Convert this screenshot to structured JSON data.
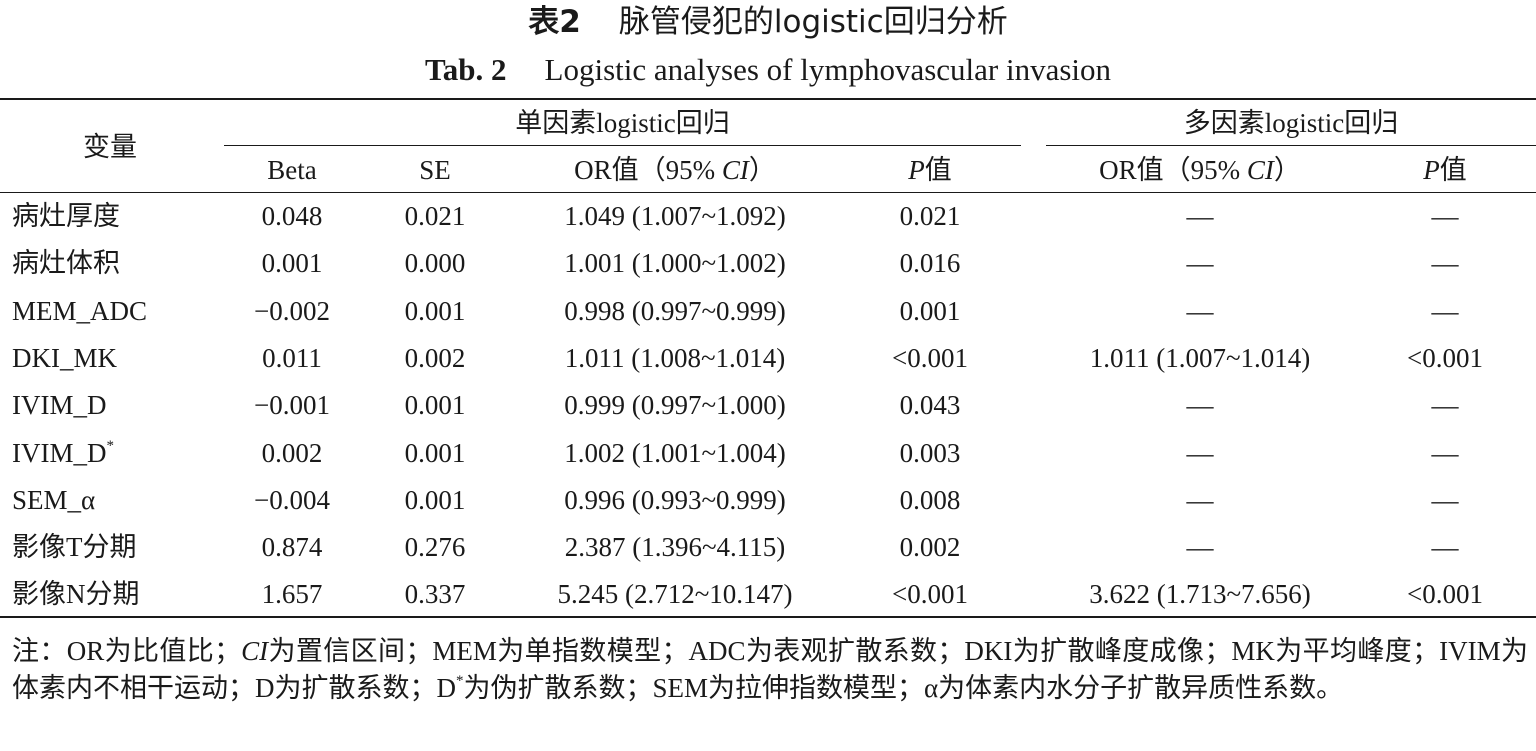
{
  "title": {
    "cn_label": "表2",
    "cn_text": "脉管侵犯的logistic回归分析",
    "en_label": "Tab. 2",
    "en_text": "Logistic analyses of lymphovascular invasion"
  },
  "header": {
    "variable": "变量",
    "uni_group": "单因素logistic回归",
    "multi_group": "多因素logistic回归",
    "beta": "Beta",
    "se": "SE",
    "or_prefix": "OR值（95% ",
    "ci": "CI",
    "or_suffix": "）",
    "p": "P",
    "p_suffix": "值"
  },
  "rows": [
    {
      "var": "病灶厚度",
      "sup": "",
      "beta": "0.048",
      "se": "0.021",
      "or": "1.049 (1.007~1.092)",
      "p": "0.021",
      "mor": "—",
      "mp": "—"
    },
    {
      "var": "病灶体积",
      "sup": "",
      "beta": "0.001",
      "se": "0.000",
      "or": "1.001 (1.000~1.002)",
      "p": "0.016",
      "mor": "—",
      "mp": "—"
    },
    {
      "var": "MEM_ADC",
      "sup": "",
      "beta": "−0.002",
      "se": "0.001",
      "or": "0.998 (0.997~0.999)",
      "p": "0.001",
      "mor": "—",
      "mp": "—"
    },
    {
      "var": "DKI_MK",
      "sup": "",
      "beta": "0.011",
      "se": "0.002",
      "or": "1.011 (1.008~1.014)",
      "p": "<0.001",
      "mor": "1.011 (1.007~1.014)",
      "mp": "<0.001"
    },
    {
      "var": "IVIM_D",
      "sup": "",
      "beta": "−0.001",
      "se": "0.001",
      "or": "0.999 (0.997~1.000)",
      "p": "0.043",
      "mor": "—",
      "mp": "—"
    },
    {
      "var": "IVIM_D",
      "sup": "*",
      "beta": "0.002",
      "se": "0.001",
      "or": "1.002 (1.001~1.004)",
      "p": "0.003",
      "mor": "—",
      "mp": "—"
    },
    {
      "var": "SEM_α",
      "sup": "",
      "beta": "−0.004",
      "se": "0.001",
      "or": "0.996 (0.993~0.999)",
      "p": "0.008",
      "mor": "—",
      "mp": "—"
    },
    {
      "var": "影像T分期",
      "sup": "",
      "beta": "0.874",
      "se": "0.276",
      "or": "2.387 (1.396~4.115)",
      "p": "0.002",
      "mor": "—",
      "mp": "—"
    },
    {
      "var": "影像N分期",
      "sup": "",
      "beta": "1.657",
      "se": "0.337",
      "or": "5.245 (2.712~10.147)",
      "p": "<0.001",
      "mor": "3.622 (1.713~7.656)",
      "mp": "<0.001"
    }
  ],
  "note": {
    "part1": "注：OR为比值比；",
    "ci": "CI",
    "part2": "为置信区间；MEM为单指数模型；ADC为表观扩散系数；DKI为扩散峰度成像；MK为平均峰度；IVIM为体素内不相干运动；D为扩散系数；D",
    "sup": "*",
    "part3": "为伪扩散系数；SEM为拉伸指数模型；α为体素内水分子扩散异质性系数。"
  }
}
